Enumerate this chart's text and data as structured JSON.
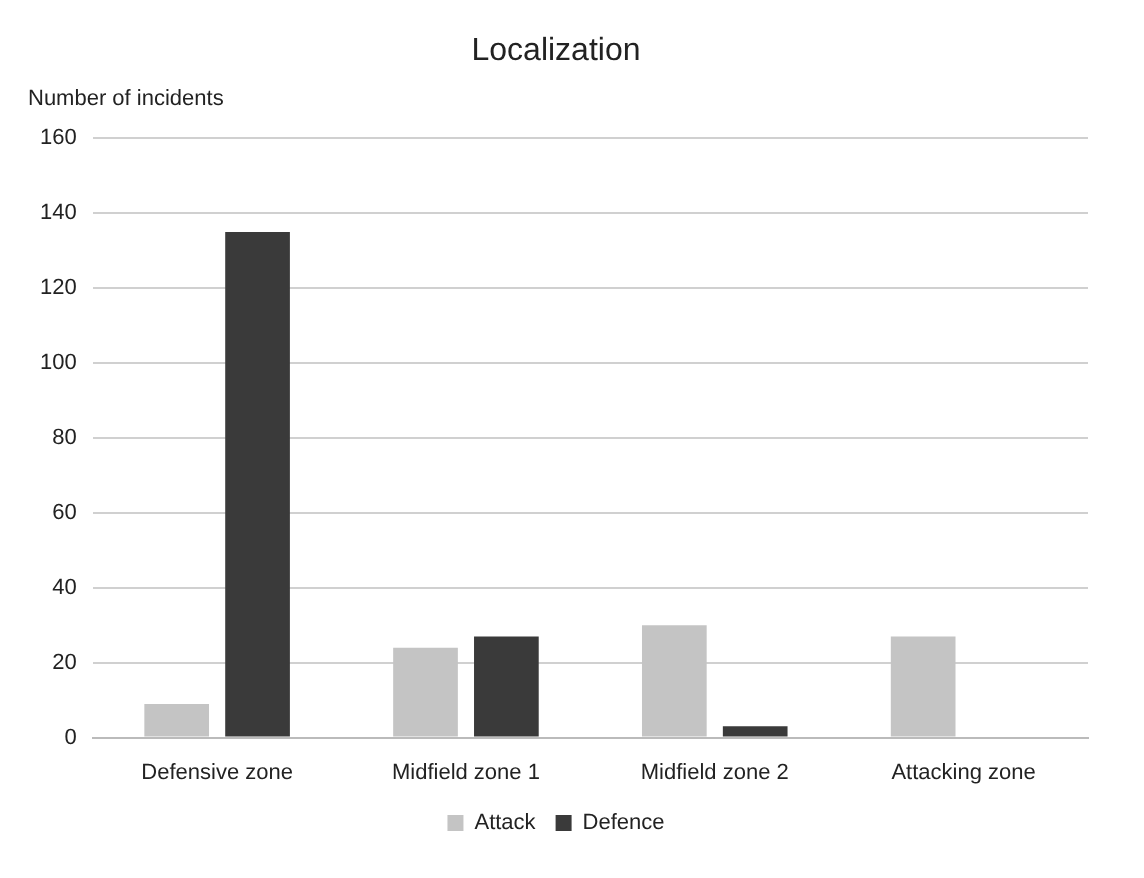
{
  "chart_data": {
    "type": "bar",
    "title": "Localization",
    "ylabel": "Number of incidents",
    "categories": [
      "Defensive zone",
      "Midfield zone 1",
      "Midfield zone 2",
      "Attacking zone"
    ],
    "series": [
      {
        "name": "Attack",
        "color": "#c4c4c4",
        "values": [
          9,
          24,
          30,
          27
        ]
      },
      {
        "name": "Defence",
        "color": "#3a3a3a",
        "values": [
          135,
          27,
          3,
          0
        ]
      }
    ],
    "ylim": [
      0,
      160
    ],
    "yticks": [
      0,
      20,
      40,
      60,
      80,
      100,
      120,
      140,
      160
    ],
    "grid": "y",
    "legend": "bottom"
  }
}
